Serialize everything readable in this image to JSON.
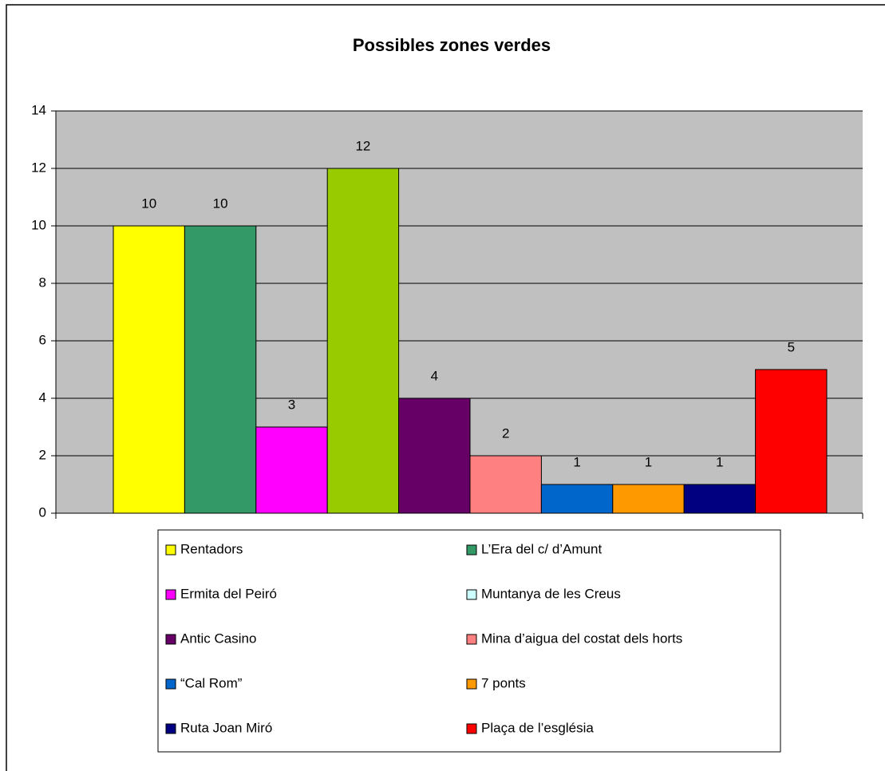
{
  "chart_data": {
    "type": "bar",
    "title": "Possibles zones verdes",
    "series": [
      {
        "name": "Rentadors",
        "color": "#ffff00",
        "values": [
          10
        ]
      },
      {
        "name": "L’Era del c/ d’Amunt",
        "color": "#339966",
        "values": [
          10
        ]
      },
      {
        "name": "Ermita del Peiró",
        "color": "#ff00ff",
        "values": [
          3
        ]
      },
      {
        "name": "Muntanya de les Creus",
        "color": "#99cc00",
        "legend_color": "#ccffff",
        "values": [
          12
        ]
      },
      {
        "name": "Antic Casino",
        "color": "#660066",
        "values": [
          4
        ]
      },
      {
        "name": "Mina d’aigua del costat dels horts",
        "color": "#ff8080",
        "values": [
          2
        ]
      },
      {
        "name": "“Cal Rom”",
        "color": "#0066cc",
        "values": [
          1
        ]
      },
      {
        "name": "7 ponts",
        "color": "#ff9900",
        "values": [
          1
        ]
      },
      {
        "name": "Ruta Joan Miró",
        "color": "#000080",
        "values": [
          1
        ]
      },
      {
        "name": "Plaça de l’església",
        "color": "#ff0000",
        "values": [
          5
        ]
      }
    ],
    "ylim": [
      0,
      14
    ],
    "yticks": [
      0,
      2,
      4,
      6,
      8,
      10,
      12,
      14
    ],
    "grid": true,
    "plot_background": "#c0c0c0",
    "legend": "bottom"
  }
}
